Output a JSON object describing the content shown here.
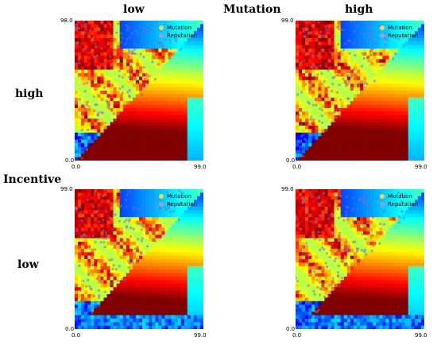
{
  "header": {
    "col_low": "low",
    "col_title": "Mutation",
    "col_high": "high"
  },
  "rows": {
    "row_high": "high",
    "row_title": "Incentive",
    "row_low": "low"
  },
  "legend": {
    "mutation": "Mutation",
    "reputation": "Reputation",
    "mutation_color": "#ffd24a",
    "reputation_color": "#9e9ed0"
  },
  "chart_data": [
    {
      "type": "heatmap",
      "panel": "top-left",
      "xlim": [
        0.0,
        99.0
      ],
      "ylim": [
        0.0,
        98.0
      ],
      "x_ticks": [
        "0.0",
        "99.0"
      ],
      "y_ticks": [
        "0.0",
        "98.0"
      ],
      "legend": [
        "Mutation",
        "Reputation"
      ],
      "legend_placement": "top-right",
      "colormap": "jet"
    },
    {
      "type": "heatmap",
      "panel": "top-right",
      "xlim": [
        0.0,
        99.0
      ],
      "ylim": [
        0.0,
        99.0
      ],
      "x_ticks": [
        "0.0",
        "99.0"
      ],
      "y_ticks": [
        "0.0",
        "99.0"
      ],
      "legend": [
        "Mutation",
        "Reputation"
      ],
      "legend_placement": "top-right",
      "colormap": "jet"
    },
    {
      "type": "heatmap",
      "panel": "bottom-left",
      "xlim": [
        0.0,
        99.0
      ],
      "ylim": [
        0.0,
        99.0
      ],
      "x_ticks": [
        "0.0",
        "99.0"
      ],
      "y_ticks": [
        "0.0",
        "99.0"
      ],
      "legend": [
        "Mutation",
        "Reputation"
      ],
      "legend_placement": "top-right",
      "colormap": "jet"
    },
    {
      "type": "heatmap",
      "panel": "bottom-right",
      "xlim": [
        0.0,
        99.0
      ],
      "ylim": [
        0.0,
        99.0
      ],
      "x_ticks": [
        "0.0",
        "99.0"
      ],
      "y_ticks": [
        "0.0",
        "99.0"
      ],
      "legend": [
        "Mutation",
        "Reputation"
      ],
      "legend_placement": "top-right",
      "colormap": "jet"
    }
  ]
}
